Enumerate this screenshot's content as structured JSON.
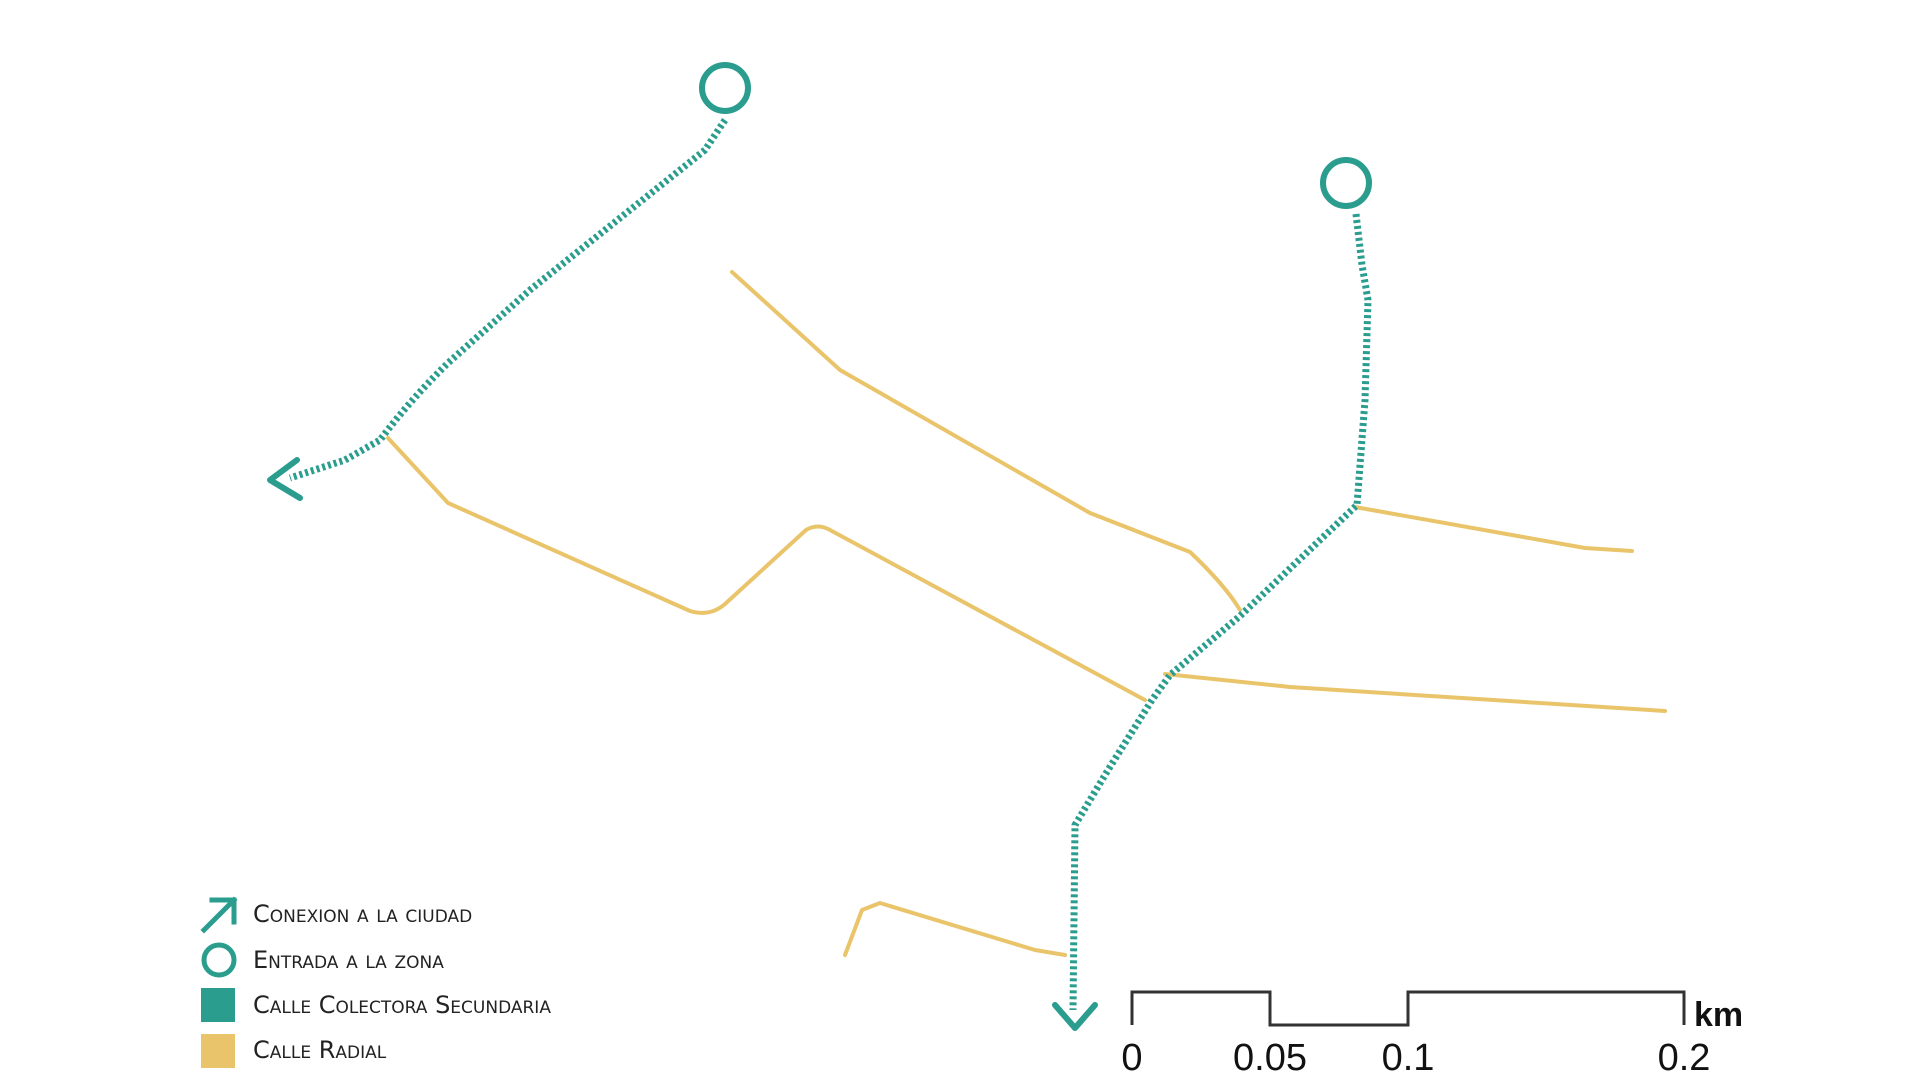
{
  "colors": {
    "connection": "#2a9d8f",
    "radial_street": "#e9c46a",
    "scale_bar": "#333333"
  },
  "legend": {
    "items": [
      {
        "label": "Conexion a la ciudad",
        "icon": "arrow-up-right-icon"
      },
      {
        "label": "Entrada a la zona",
        "icon": "circle-outline-icon"
      },
      {
        "label": "Calle Colectora Secundaria",
        "icon": "teal-square-icon"
      },
      {
        "label": "Calle Radial",
        "icon": "yellow-square-icon"
      }
    ]
  },
  "scale": {
    "labels": [
      "0",
      "0.05",
      "0.1",
      "0.2"
    ],
    "unit": "km"
  }
}
